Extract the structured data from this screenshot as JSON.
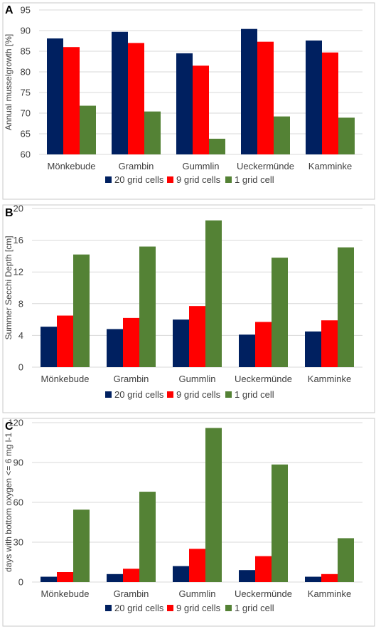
{
  "colors": {
    "s1": "#002060",
    "s2": "#ff0000",
    "s3": "#548235"
  },
  "chart_data": [
    {
      "panel": "A",
      "type": "bar",
      "ylabel": "Annual musselgrowth [%]",
      "ylim": [
        60,
        95
      ],
      "yticks": [
        60,
        65,
        70,
        75,
        80,
        85,
        90,
        95
      ],
      "grid": true,
      "legend_position": "bottom",
      "categories": [
        "Mönkebude",
        "Grambin",
        "Gummlin",
        "Ueckermünde",
        "Kamminke"
      ],
      "series": [
        {
          "name": "20 grid cells",
          "values": [
            88.1,
            89.7,
            84.5,
            90.4,
            87.6
          ]
        },
        {
          "name": "9 grid cells",
          "values": [
            86.0,
            87.0,
            81.5,
            87.3,
            84.7
          ]
        },
        {
          "name": "1 grid cell",
          "values": [
            71.8,
            70.4,
            63.8,
            69.2,
            68.9
          ]
        }
      ]
    },
    {
      "panel": "B",
      "type": "bar",
      "ylabel": "Summer Secchi Depth [cm]",
      "ylim": [
        0,
        20
      ],
      "yticks": [
        0,
        4,
        8,
        12,
        16,
        20
      ],
      "grid": true,
      "legend_position": "bottom",
      "categories": [
        "Mönkebude",
        "Grambin",
        "Gummlin",
        "Ueckermünde",
        "Kamminke"
      ],
      "series": [
        {
          "name": "20 grid cells",
          "values": [
            5.1,
            4.8,
            6.0,
            4.1,
            4.5
          ]
        },
        {
          "name": "9 grid cells",
          "values": [
            6.5,
            6.2,
            7.7,
            5.7,
            5.9
          ]
        },
        {
          "name": "1 grid cell",
          "values": [
            14.2,
            15.2,
            18.5,
            13.8,
            15.1
          ]
        }
      ]
    },
    {
      "panel": "C",
      "type": "bar",
      "ylabel": "days with bottom oxygen <= 6 mg l-1",
      "ylim": [
        0,
        120
      ],
      "yticks": [
        0,
        30,
        60,
        90,
        120
      ],
      "grid": true,
      "legend_position": "bottom",
      "categories": [
        "Mönkebude",
        "Grambin",
        "Gummlin",
        "Ueckermünde",
        "Kamminke"
      ],
      "series": [
        {
          "name": "20 grid cells",
          "values": [
            4,
            6,
            12,
            9,
            4
          ]
        },
        {
          "name": "9 grid cells",
          "values": [
            7.5,
            10,
            25,
            19.5,
            6
          ]
        },
        {
          "name": "1 grid cell",
          "values": [
            54.5,
            68,
            116,
            88.5,
            33
          ]
        }
      ]
    }
  ]
}
